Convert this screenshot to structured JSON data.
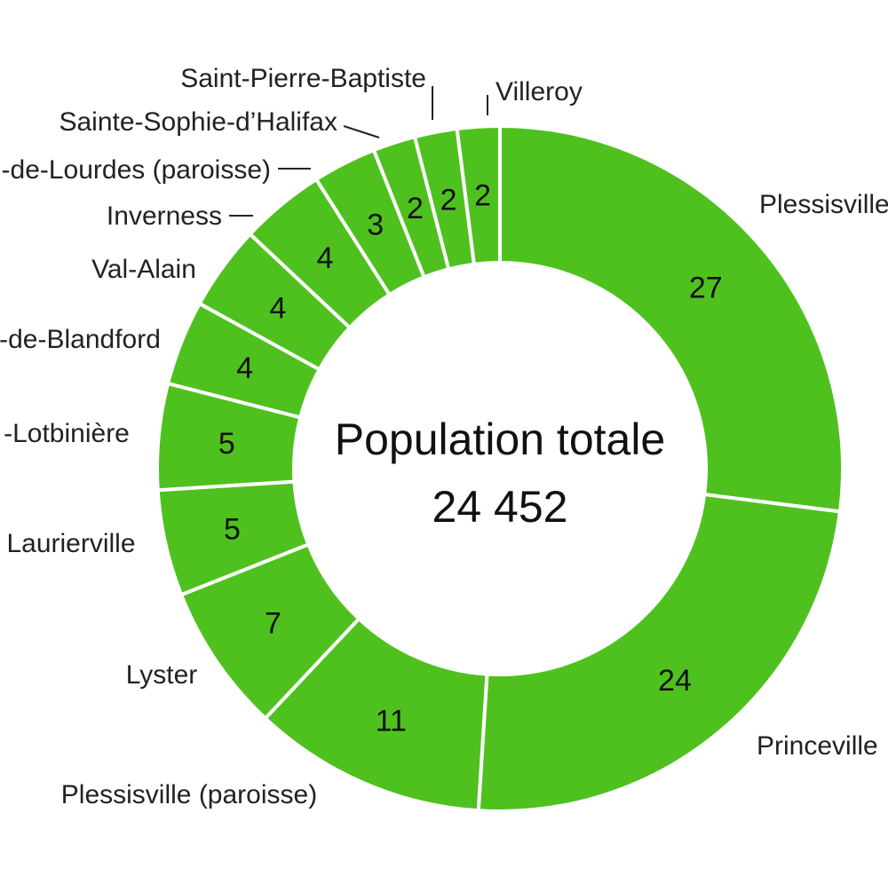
{
  "chart_data": {
    "type": "pie",
    "donut": true,
    "center_title": "Population totale",
    "center_value": "24 452",
    "slice_color": "#4fc11f",
    "separator_color": "#ffffff",
    "slices": [
      {
        "label": "Plessisville",
        "value": 27
      },
      {
        "label": "Princeville",
        "value": 24
      },
      {
        "label": "Plessisville (paroisse)",
        "value": 11
      },
      {
        "label": "Lyster",
        "value": 7
      },
      {
        "label": "Laurierville",
        "value": 5
      },
      {
        "label": "-Lotbinière",
        "value": 5
      },
      {
        "label": "-de-Blandford",
        "value": 4
      },
      {
        "label": "Val-Alain",
        "value": 4
      },
      {
        "label": "Inverness",
        "value": 4
      },
      {
        "label": "-de-Lourdes (paroisse)",
        "value": 3
      },
      {
        "label": "Sainte-Sophie-d’Halifax",
        "value": 2
      },
      {
        "label": "Saint-Pierre-Baptiste",
        "value": 2
      },
      {
        "label": "Villeroy",
        "value": 2
      }
    ]
  }
}
